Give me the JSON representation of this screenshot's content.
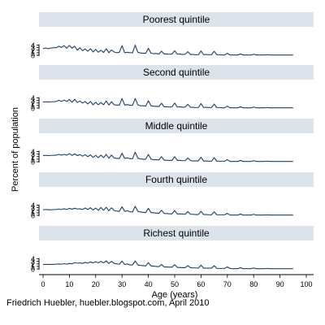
{
  "colors": {
    "line": "#1f3f66",
    "panel_header_bg": "#dde3ea",
    "text": "#000000"
  },
  "footer": {
    "credit": "Friedrich Huebler, huebler.blogspot.com, April 2010"
  },
  "chart_data": {
    "type": "line",
    "title": "",
    "xlabel": "Age (years)",
    "ylabel": "Percent of population",
    "xlim": [
      0,
      100
    ],
    "ylim": [
      0,
      4
    ],
    "x_ticks": [
      0,
      10,
      20,
      30,
      40,
      50,
      60,
      70,
      80,
      90,
      100
    ],
    "y_ticks": [
      0,
      1,
      2,
      3,
      4
    ],
    "grid": false,
    "legend": "none",
    "x": [
      0,
      1,
      2,
      3,
      4,
      5,
      6,
      7,
      8,
      9,
      10,
      11,
      12,
      13,
      14,
      15,
      16,
      17,
      18,
      19,
      20,
      21,
      22,
      23,
      24,
      25,
      26,
      27,
      28,
      29,
      30,
      31,
      32,
      33,
      34,
      35,
      36,
      37,
      38,
      39,
      40,
      41,
      42,
      43,
      44,
      45,
      46,
      47,
      48,
      49,
      50,
      51,
      52,
      53,
      54,
      55,
      56,
      57,
      58,
      59,
      60,
      61,
      62,
      63,
      64,
      65,
      66,
      67,
      68,
      69,
      70,
      71,
      72,
      73,
      74,
      75,
      76,
      77,
      78,
      79,
      80,
      81,
      82,
      83,
      84,
      85,
      86,
      87,
      88,
      89,
      90,
      91,
      92,
      93,
      94,
      95
    ],
    "series": [
      {
        "name": "Poorest quintile",
        "values": [
          2.6,
          2.9,
          2.6,
          2.9,
          3.0,
          3.0,
          3.6,
          3.1,
          3.8,
          2.8,
          3.9,
          2.8,
          3.6,
          2.0,
          3.0,
          1.8,
          2.5,
          1.6,
          2.6,
          1.3,
          2.3,
          1.2,
          2.0,
          1.1,
          2.6,
          1.0,
          2.1,
          1.3,
          1.0,
          1.2,
          3.8,
          1.0,
          1.2,
          1.0,
          1.0,
          4.0,
          1.2,
          0.9,
          0.8,
          0.8,
          2.8,
          0.8,
          0.6,
          0.7,
          0.5,
          1.6,
          0.5,
          0.5,
          0.4,
          0.5,
          1.8,
          0.4,
          0.5,
          0.3,
          0.4,
          1.4,
          0.3,
          0.3,
          0.2,
          0.2,
          1.7,
          0.2,
          0.3,
          0.2,
          0.2,
          1.6,
          0.2,
          0.2,
          0.1,
          0.1,
          0.8,
          0.1,
          0.1,
          0.1,
          0.1,
          0.5,
          0.1,
          0.1,
          0.1,
          0.1,
          0.4,
          0.1,
          0.1,
          0.1,
          0.1,
          0.2,
          0.1,
          0.1,
          0.1,
          0.1,
          0.1,
          0.1,
          0.1,
          0.1,
          0.1,
          0.1
        ]
      },
      {
        "name": "Second quintile",
        "values": [
          2.4,
          2.5,
          2.4,
          2.5,
          2.5,
          2.6,
          3.1,
          2.6,
          3.2,
          2.6,
          3.4,
          2.3,
          3.5,
          2.2,
          2.8,
          2.0,
          2.6,
          1.6,
          2.6,
          1.3,
          2.3,
          1.3,
          2.2,
          1.3,
          2.8,
          1.2,
          2.5,
          1.3,
          1.2,
          1.2,
          3.8,
          1.2,
          1.4,
          1.1,
          1.1,
          3.8,
          1.3,
          0.9,
          0.9,
          0.8,
          2.9,
          0.9,
          0.7,
          0.7,
          0.6,
          1.9,
          0.5,
          0.5,
          0.4,
          0.5,
          2.0,
          0.4,
          0.5,
          0.3,
          0.4,
          1.5,
          0.3,
          0.3,
          0.2,
          0.2,
          1.8,
          0.2,
          0.3,
          0.2,
          0.2,
          1.6,
          0.2,
          0.2,
          0.1,
          0.1,
          0.8,
          0.1,
          0.1,
          0.1,
          0.1,
          0.5,
          0.1,
          0.1,
          0.1,
          0.1,
          0.4,
          0.1,
          0.1,
          0.1,
          0.1,
          0.2,
          0.1,
          0.1,
          0.1,
          0.1,
          0.1,
          0.1,
          0.1,
          0.1,
          0.1,
          0.1
        ]
      },
      {
        "name": "Middle quintile",
        "values": [
          2.4,
          2.5,
          2.4,
          2.5,
          2.5,
          2.6,
          2.9,
          2.6,
          2.9,
          2.6,
          3.2,
          2.5,
          3.1,
          2.4,
          2.8,
          2.2,
          2.8,
          2.0,
          2.7,
          1.7,
          2.5,
          1.6,
          2.6,
          1.6,
          2.9,
          1.4,
          2.6,
          1.5,
          1.3,
          1.3,
          3.4,
          1.3,
          1.5,
          1.2,
          1.2,
          3.8,
          1.4,
          1.1,
          1.0,
          1.0,
          2.9,
          1.0,
          0.8,
          0.8,
          0.7,
          2.0,
          0.6,
          0.6,
          0.5,
          0.5,
          2.0,
          0.5,
          0.5,
          0.4,
          0.4,
          1.5,
          0.4,
          0.3,
          0.3,
          0.3,
          1.8,
          0.2,
          0.3,
          0.2,
          0.2,
          1.6,
          0.2,
          0.2,
          0.2,
          0.2,
          0.8,
          0.1,
          0.1,
          0.1,
          0.1,
          0.5,
          0.1,
          0.1,
          0.1,
          0.1,
          0.4,
          0.1,
          0.1,
          0.1,
          0.1,
          0.2,
          0.1,
          0.1,
          0.1,
          0.1,
          0.1,
          0.1,
          0.1,
          0.1,
          0.1,
          0.1
        ]
      },
      {
        "name": "Fourth quintile",
        "values": [
          2.2,
          2.3,
          2.2,
          2.2,
          2.3,
          2.3,
          2.5,
          2.3,
          2.6,
          2.3,
          2.8,
          2.4,
          2.8,
          2.5,
          2.6,
          2.3,
          2.9,
          2.3,
          3.0,
          2.1,
          2.9,
          2.0,
          3.1,
          2.0,
          3.2,
          1.8,
          3.0,
          1.9,
          1.7,
          1.6,
          3.4,
          1.6,
          1.8,
          1.4,
          1.4,
          3.6,
          1.6,
          1.3,
          1.2,
          1.1,
          2.8,
          1.1,
          1.0,
          0.9,
          0.8,
          2.0,
          0.7,
          0.7,
          0.6,
          0.6,
          1.9,
          0.5,
          0.6,
          0.5,
          0.4,
          1.5,
          0.4,
          0.4,
          0.3,
          0.3,
          1.6,
          0.3,
          0.3,
          0.2,
          0.2,
          1.4,
          0.2,
          0.2,
          0.2,
          0.2,
          0.8,
          0.1,
          0.1,
          0.1,
          0.1,
          0.5,
          0.1,
          0.1,
          0.1,
          0.1,
          0.4,
          0.1,
          0.1,
          0.1,
          0.1,
          0.2,
          0.1,
          0.1,
          0.1,
          0.1,
          0.1,
          0.1,
          0.1,
          0.1,
          0.1,
          0.1
        ]
      },
      {
        "name": "Richest quintile",
        "values": [
          1.8,
          1.8,
          1.8,
          1.8,
          1.8,
          1.9,
          2.0,
          1.9,
          2.1,
          1.9,
          2.2,
          2.0,
          2.5,
          2.3,
          2.4,
          2.2,
          2.6,
          2.3,
          2.8,
          2.4,
          2.9,
          2.4,
          3.0,
          2.4,
          3.2,
          2.2,
          3.0,
          2.2,
          2.0,
          1.9,
          3.1,
          1.8,
          2.0,
          1.6,
          1.6,
          3.2,
          1.6,
          1.4,
          1.3,
          1.2,
          2.5,
          1.2,
          1.1,
          1.0,
          0.9,
          1.8,
          0.8,
          0.8,
          0.7,
          0.7,
          1.7,
          0.6,
          0.6,
          0.5,
          0.5,
          1.3,
          0.5,
          0.4,
          0.4,
          0.3,
          1.5,
          0.3,
          0.3,
          0.3,
          0.3,
          1.3,
          0.2,
          0.2,
          0.2,
          0.2,
          0.8,
          0.2,
          0.1,
          0.1,
          0.1,
          0.5,
          0.1,
          0.1,
          0.1,
          0.1,
          0.4,
          0.1,
          0.1,
          0.1,
          0.1,
          0.2,
          0.1,
          0.1,
          0.1,
          0.1,
          0.1,
          0.1,
          0.1,
          0.1,
          0.1,
          0.1
        ]
      }
    ]
  }
}
